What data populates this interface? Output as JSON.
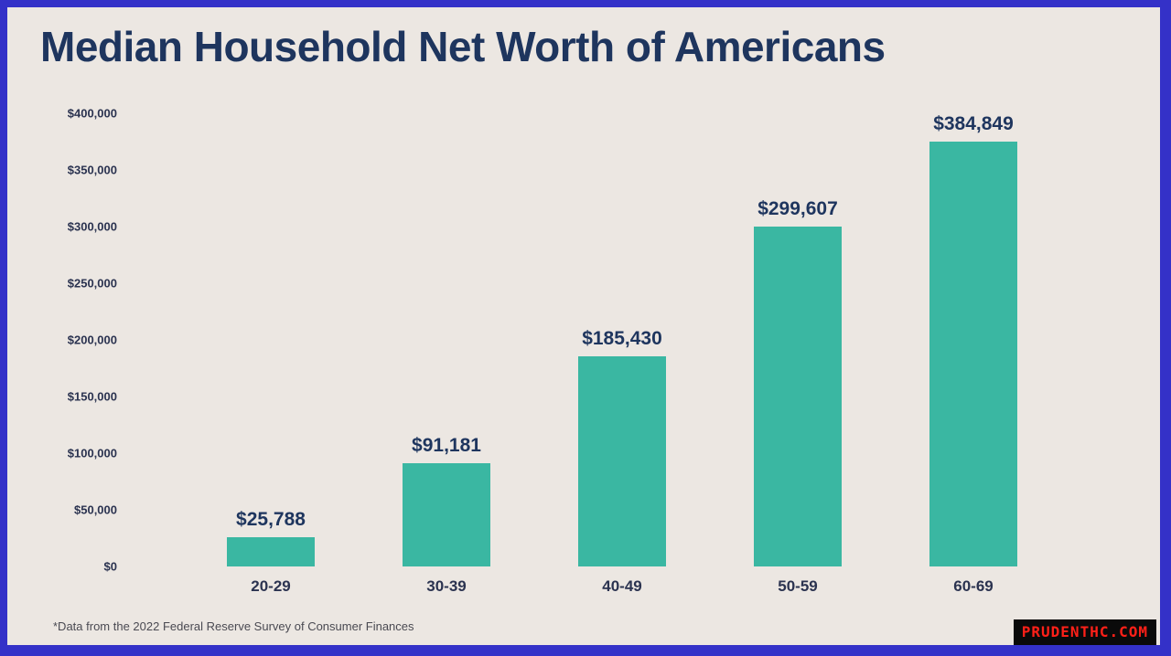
{
  "page": {
    "title": "Median Household Net Worth of Americans",
    "footnote": "*Data from the 2022 Federal Reserve Survey of Consumer Finances",
    "watermark": "PRUDENTHC.COM"
  },
  "colors": {
    "border": "#3431c8",
    "background": "#ece7e2",
    "bar": "#3ab7a2",
    "title_text": "#1e355e",
    "axis_text": "#2b3350",
    "watermark_bg": "#0a0a0a",
    "watermark_text": "#ff2018"
  },
  "chart_data": {
    "type": "bar",
    "title": "Median Household Net Worth of Americans",
    "categories": [
      "20-29",
      "30-39",
      "40-49",
      "50-59",
      "60-69"
    ],
    "values": [
      25788,
      91181,
      185430,
      299607,
      384849
    ],
    "value_labels": [
      "$25,788",
      "$91,181",
      "$185,430",
      "$299,607",
      "$384,849"
    ],
    "y_tick_labels": [
      "$400,000",
      "$350,000",
      "$300,000",
      "$250,000",
      "$200,000",
      "$150,000",
      "$100,000",
      "$50,000",
      "$0"
    ],
    "ylim": [
      0,
      400000
    ],
    "xlabel": "",
    "ylabel": "",
    "grid": false,
    "legend_position": "none",
    "source_note": "*Data from the 2022 Federal Reserve Survey of Consumer Finances"
  }
}
